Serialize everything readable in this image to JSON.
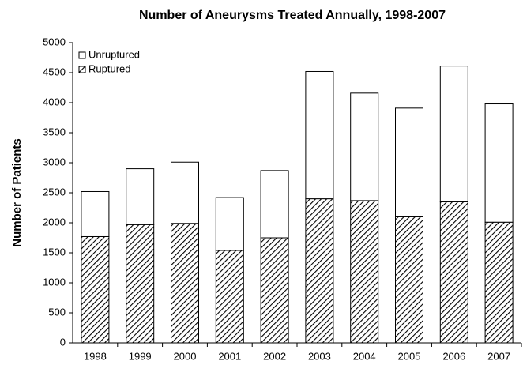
{
  "chart_data": {
    "type": "stacked-bar",
    "title": "Number of Aneurysms Treated Annually, 1998-2007",
    "y_label": "Number of Patients",
    "categories": [
      "1998",
      "1999",
      "2000",
      "2001",
      "2002",
      "2003",
      "2004",
      "2005",
      "2006",
      "2007"
    ],
    "series": [
      {
        "name": "Ruptured",
        "color": "#000000",
        "values": [
          1770,
          1970,
          1990,
          1540,
          1750,
          2400,
          2370,
          2100,
          2350,
          2010
        ]
      },
      {
        "name": "Unruptured",
        "color": "#ffffff",
        "values": [
          750,
          930,
          1020,
          880,
          1120,
          2120,
          1790,
          1810,
          2260,
          1970
        ]
      }
    ],
    "ylim": [
      0,
      5000
    ],
    "yticks": [
      0,
      500,
      1000,
      1500,
      2000,
      2500,
      3000,
      3500,
      4000,
      4500,
      5000
    ],
    "grid": false,
    "legend": "top-left"
  }
}
